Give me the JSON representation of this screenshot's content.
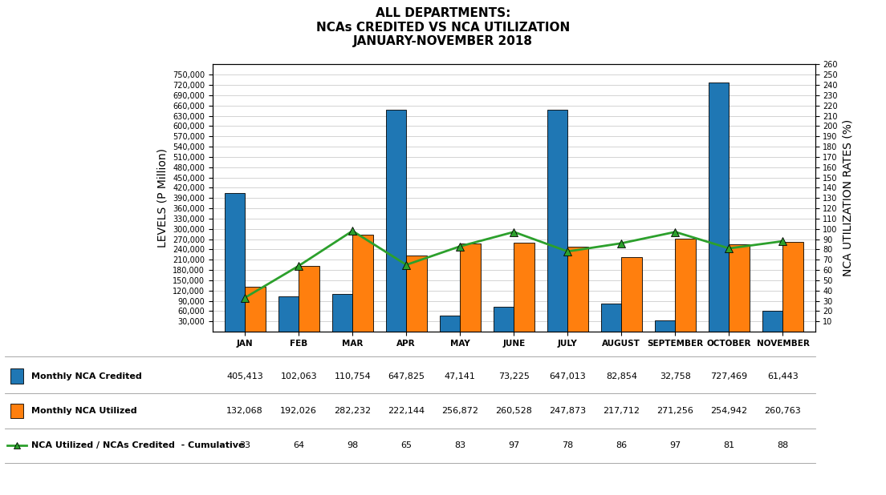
{
  "chart_data": {
    "type": "bar",
    "title": "ALL DEPARTMENTS:\nNCAs CREDITED VS NCA UTILIZATION\nJANUARY-NOVEMBER 2018",
    "categories": [
      "JAN",
      "FEB",
      "MAR",
      "APR",
      "MAY",
      "JUNE",
      "JULY",
      "AUGUST",
      "SEPTEMBER",
      "OCTOBER",
      "NOVEMBER"
    ],
    "series": [
      {
        "name": "Monthly NCA Credited",
        "type": "bar",
        "values": [
          405413,
          102063,
          110754,
          647825,
          47141,
          73225,
          647013,
          82854,
          32758,
          727469,
          61443
        ],
        "value_labels": [
          "405,413",
          "102,063",
          "110,754",
          "647,825",
          "47,141",
          "73,225",
          "647,013",
          "82,854",
          "32,758",
          "727,469",
          "61,443"
        ]
      },
      {
        "name": "Monthly NCA Utilized",
        "type": "bar",
        "values": [
          132068,
          192026,
          282232,
          222144,
          256872,
          260528,
          247873,
          217712,
          271256,
          254942,
          260763
        ],
        "value_labels": [
          "132,068",
          "192,026",
          "282,232",
          "222,144",
          "256,872",
          "260,528",
          "247,873",
          "217,712",
          "271,256",
          "254,942",
          "260,763"
        ]
      },
      {
        "name": "NCA Utilized / NCAs Credited  - Cumulative",
        "type": "line",
        "axis": "y2",
        "marker": "triangle",
        "values": [
          33,
          64,
          98,
          65,
          83,
          97,
          78,
          86,
          97,
          81,
          88
        ]
      }
    ],
    "ylabel": "LEVELS (P Million)",
    "y2label": "NCA UTILIZATION RATES (%)",
    "ylim": [
      0,
      780000
    ],
    "yticks": [
      {
        "value": 30000,
        "label": "30,000"
      },
      {
        "value": 60000,
        "label": "60,000"
      },
      {
        "value": 90000,
        "label": "90,000"
      },
      {
        "value": 120000,
        "label": "120,000"
      },
      {
        "value": 150000,
        "label": "150,000"
      },
      {
        "value": 180000,
        "label": "180,000"
      },
      {
        "value": 210000,
        "label": "210,000"
      },
      {
        "value": 240000,
        "label": "240,000"
      },
      {
        "value": 270000,
        "label": "270,000"
      },
      {
        "value": 300000,
        "label": "300,000"
      },
      {
        "value": 330000,
        "label": "330,000"
      },
      {
        "value": 360000,
        "label": "360,000"
      },
      {
        "value": 390000,
        "label": "390,000"
      },
      {
        "value": 420000,
        "label": "420,000"
      },
      {
        "value": 450000,
        "label": "450,000"
      },
      {
        "value": 480000,
        "label": "480,000"
      },
      {
        "value": 510000,
        "label": "510,000"
      },
      {
        "value": 540000,
        "label": "540,000"
      },
      {
        "value": 570000,
        "label": "570,000"
      },
      {
        "value": 600000,
        "label": "600,000"
      },
      {
        "value": 630000,
        "label": "630,000"
      },
      {
        "value": 660000,
        "label": "660,000"
      },
      {
        "value": 690000,
        "label": "690,000"
      },
      {
        "value": 720000,
        "label": "720,000"
      },
      {
        "value": 750000,
        "label": "750,000"
      }
    ],
    "y2lim": [
      0,
      260
    ],
    "y2ticks": [
      10,
      20,
      30,
      40,
      50,
      60,
      70,
      80,
      90,
      100,
      110,
      120,
      130,
      140,
      150,
      160,
      170,
      180,
      190,
      200,
      210,
      220,
      230,
      240,
      250,
      260
    ],
    "grid": true
  }
}
